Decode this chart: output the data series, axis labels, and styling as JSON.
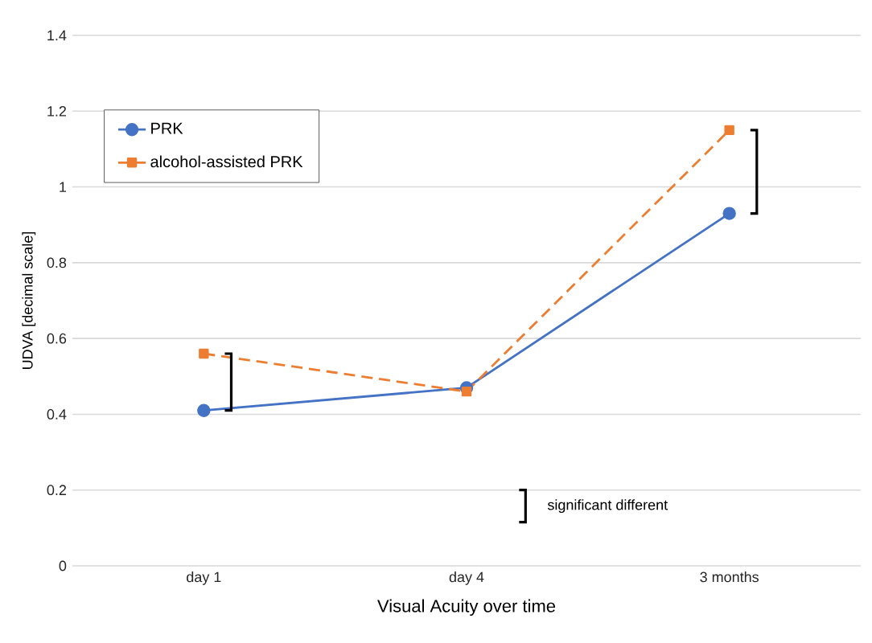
{
  "chart_data": {
    "type": "line",
    "xlabel": "Visual Acuity over time",
    "ylabel": "UDVA [decimal scale]",
    "categories": [
      "day 1",
      "day 4",
      "3 months"
    ],
    "series": [
      {
        "name": "PRK",
        "color": "#4472c4",
        "values": [
          0.41,
          0.47,
          0.93
        ],
        "marker": "circle",
        "line_style": "solid"
      },
      {
        "name": "alcohol-assisted PRK",
        "color": "#ed7d31",
        "values": [
          0.56,
          0.46,
          1.15
        ],
        "marker": "square",
        "line_style": "dashed"
      }
    ],
    "ylim": [
      0,
      1.4
    ],
    "yticks": [
      0,
      0.2,
      0.4,
      0.6,
      0.8,
      1,
      1.2,
      1.4
    ],
    "grid": "y",
    "legend": "top left",
    "annotations": [
      "significant different"
    ]
  }
}
